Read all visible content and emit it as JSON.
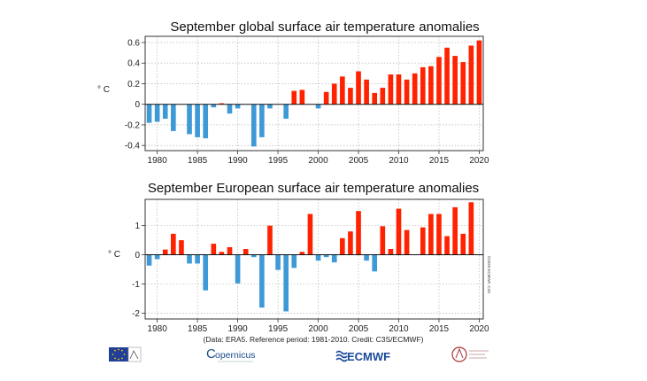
{
  "chart_data": [
    {
      "type": "bar",
      "title": "September global surface air temperature anomalies",
      "ylabel": "° C",
      "xlabel": "",
      "x_ticks": [
        1980,
        1985,
        1990,
        1995,
        2000,
        2005,
        2010,
        2015,
        2020
      ],
      "y_ticks": [
        "0.6",
        "0.4",
        "0.2",
        "0",
        "-0.2",
        "-0.4"
      ],
      "ylim": [
        -0.45,
        0.66
      ],
      "grid": true,
      "colors": {
        "positive": "#ff2200",
        "negative": "#3d9ad6"
      },
      "x": [
        1979,
        1980,
        1981,
        1982,
        1983,
        1984,
        1985,
        1986,
        1987,
        1988,
        1989,
        1990,
        1991,
        1992,
        1993,
        1994,
        1995,
        1996,
        1997,
        1998,
        1999,
        2000,
        2001,
        2002,
        2003,
        2004,
        2005,
        2006,
        2007,
        2008,
        2009,
        2010,
        2011,
        2012,
        2013,
        2014,
        2015,
        2016,
        2017,
        2018,
        2019,
        2020
      ],
      "values": [
        -0.18,
        -0.17,
        -0.14,
        -0.26,
        0,
        -0.29,
        -0.32,
        -0.33,
        -0.03,
        0.01,
        -0.09,
        -0.04,
        0,
        -0.41,
        -0.32,
        -0.04,
        0,
        -0.14,
        0.13,
        0.14,
        0,
        -0.04,
        0.12,
        0.2,
        0.27,
        0.16,
        0.32,
        0.24,
        0.11,
        0.16,
        0.29,
        0.29,
        0.24,
        0.3,
        0.36,
        0.37,
        0.46,
        0.55,
        0.47,
        0.41,
        0.57,
        0.62
      ]
    },
    {
      "type": "bar",
      "title": "September European surface air temperature anomalies",
      "ylabel": "° C",
      "xlabel": "",
      "x_ticks": [
        1980,
        1985,
        1990,
        1995,
        2000,
        2005,
        2010,
        2015,
        2020
      ],
      "y_ticks": [
        "1",
        "0",
        "-1",
        "-2"
      ],
      "ylim": [
        -2.2,
        1.9
      ],
      "grid": true,
      "colors": {
        "positive": "#ff2200",
        "negative": "#3d9ad6"
      },
      "x": [
        1979,
        1980,
        1981,
        1982,
        1983,
        1984,
        1985,
        1986,
        1987,
        1988,
        1989,
        1990,
        1991,
        1992,
        1993,
        1994,
        1995,
        1996,
        1997,
        1998,
        1999,
        2000,
        2001,
        2002,
        2003,
        2004,
        2005,
        2006,
        2007,
        2008,
        2009,
        2010,
        2011,
        2012,
        2013,
        2014,
        2015,
        2016,
        2017,
        2018,
        2019,
        2020
      ],
      "values": [
        -0.37,
        -0.15,
        0.18,
        0.72,
        0.5,
        -0.3,
        -0.3,
        -1.22,
        0.38,
        0.1,
        0.26,
        -0.98,
        0.2,
        -0.08,
        -1.81,
        1.0,
        -0.52,
        -1.94,
        -0.45,
        0.1,
        1.4,
        -0.2,
        -0.08,
        -0.26,
        0.57,
        0.8,
        1.5,
        -0.2,
        -0.57,
        0.98,
        0.2,
        1.58,
        0.85,
        0,
        0.94,
        1.4,
        1.4,
        0.64,
        1.63,
        0.72,
        1.8,
        0
      ]
    }
  ],
  "footer": {
    "credit": "(Data: ERA5.  Reference period: 1981-2010.  Credit: C3S/ECMWF)",
    "side_text": "©2020 ECMWF, C3S"
  },
  "logos": {
    "copernicus": "opernicus",
    "copernicus_initial": "C",
    "ecmwf": "ECMWF",
    "eu_icon": "eu-flag-icon",
    "third_icon": "climate-change-service-icon"
  }
}
